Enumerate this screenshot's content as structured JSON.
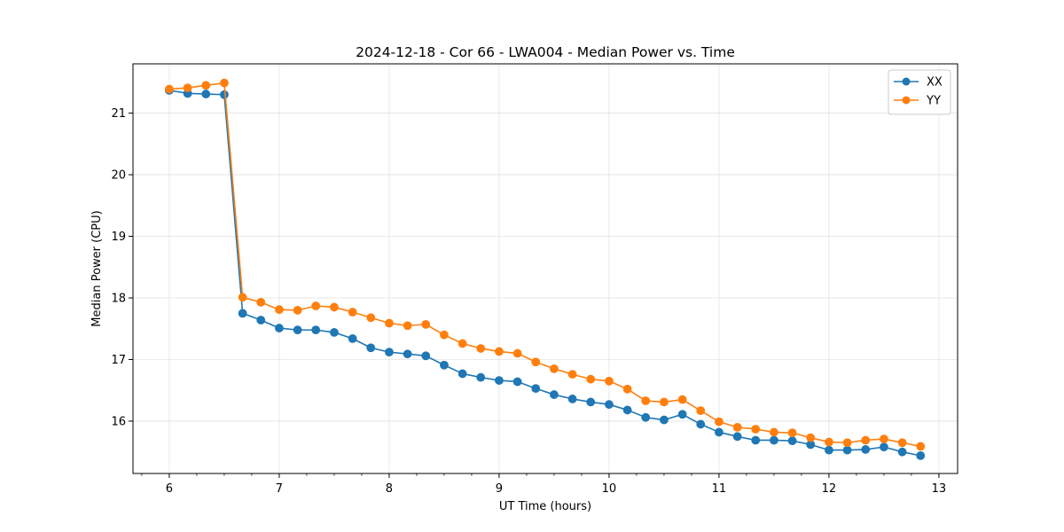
{
  "chart_data": {
    "type": "line",
    "title": "2024-12-18 - Cor 66 - LWA004 - Median Power vs. Time",
    "xlabel": "UT Time (hours)",
    "ylabel": "Median Power (CPU)",
    "xlim": [
      5.67,
      13.17
    ],
    "ylim": [
      15.15,
      21.8
    ],
    "xticks": [
      6,
      7,
      8,
      9,
      10,
      11,
      12,
      13
    ],
    "yticks": [
      16,
      17,
      18,
      19,
      20,
      21
    ],
    "grid": true,
    "legend_position": "top-right",
    "x": [
      6.0,
      6.167,
      6.333,
      6.5,
      6.667,
      6.833,
      7.0,
      7.167,
      7.333,
      7.5,
      7.667,
      7.833,
      8.0,
      8.167,
      8.333,
      8.5,
      8.667,
      8.833,
      9.0,
      9.167,
      9.333,
      9.5,
      9.667,
      9.833,
      10.0,
      10.167,
      10.333,
      10.5,
      10.667,
      10.833,
      11.0,
      11.167,
      11.333,
      11.5,
      11.667,
      11.833,
      12.0,
      12.167,
      12.333,
      12.5,
      12.667,
      12.833
    ],
    "series": [
      {
        "name": "XX",
        "color": "#1f77b4",
        "values": [
          21.37,
          21.32,
          21.31,
          21.3,
          17.75,
          17.64,
          17.51,
          17.48,
          17.48,
          17.44,
          17.34,
          17.19,
          17.12,
          17.09,
          17.06,
          16.91,
          16.77,
          16.71,
          16.66,
          16.64,
          16.53,
          16.43,
          16.36,
          16.31,
          16.27,
          16.18,
          16.06,
          16.02,
          16.11,
          15.95,
          15.82,
          15.75,
          15.69,
          15.69,
          15.68,
          15.62,
          15.53,
          15.53,
          15.54,
          15.58,
          15.5,
          15.44
        ]
      },
      {
        "name": "YY",
        "color": "#ff7f0e",
        "values": [
          21.39,
          21.41,
          21.45,
          21.49,
          18.01,
          17.93,
          17.81,
          17.8,
          17.87,
          17.85,
          17.77,
          17.68,
          17.59,
          17.55,
          17.57,
          17.4,
          17.26,
          17.18,
          17.13,
          17.1,
          16.96,
          16.85,
          16.76,
          16.68,
          16.65,
          16.52,
          16.33,
          16.31,
          16.35,
          16.17,
          15.99,
          15.9,
          15.87,
          15.82,
          15.81,
          15.73,
          15.66,
          15.65,
          15.69,
          15.71,
          15.65,
          15.59
        ]
      }
    ]
  }
}
